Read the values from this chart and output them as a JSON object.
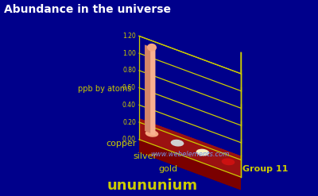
{
  "title": "Abundance in the universe",
  "ylabel": "ppb by atoms",
  "group_label": "Group 11",
  "watermark": "www.webelements.com",
  "background_color": "#00008B",
  "elements": [
    "copper",
    "silver",
    "gold",
    "unununium"
  ],
  "values": [
    1.0,
    0.006,
    0.006,
    0.0
  ],
  "bar_colors": [
    "#F4A580",
    "#D0D0D0",
    "#F5F0C0",
    "#CC1111"
  ],
  "platform_color_top": "#9B1111",
  "platform_color_front": "#7A0000",
  "platform_color_side": "#8A0808",
  "grid_color": "#CCCC00",
  "title_color": "#FFFFFF",
  "label_color": "#CCCC00",
  "yticks": [
    0.0,
    0.2,
    0.4,
    0.6,
    0.8,
    1.0,
    1.2
  ],
  "figsize": [
    4.0,
    2.47
  ],
  "dpi": 100
}
